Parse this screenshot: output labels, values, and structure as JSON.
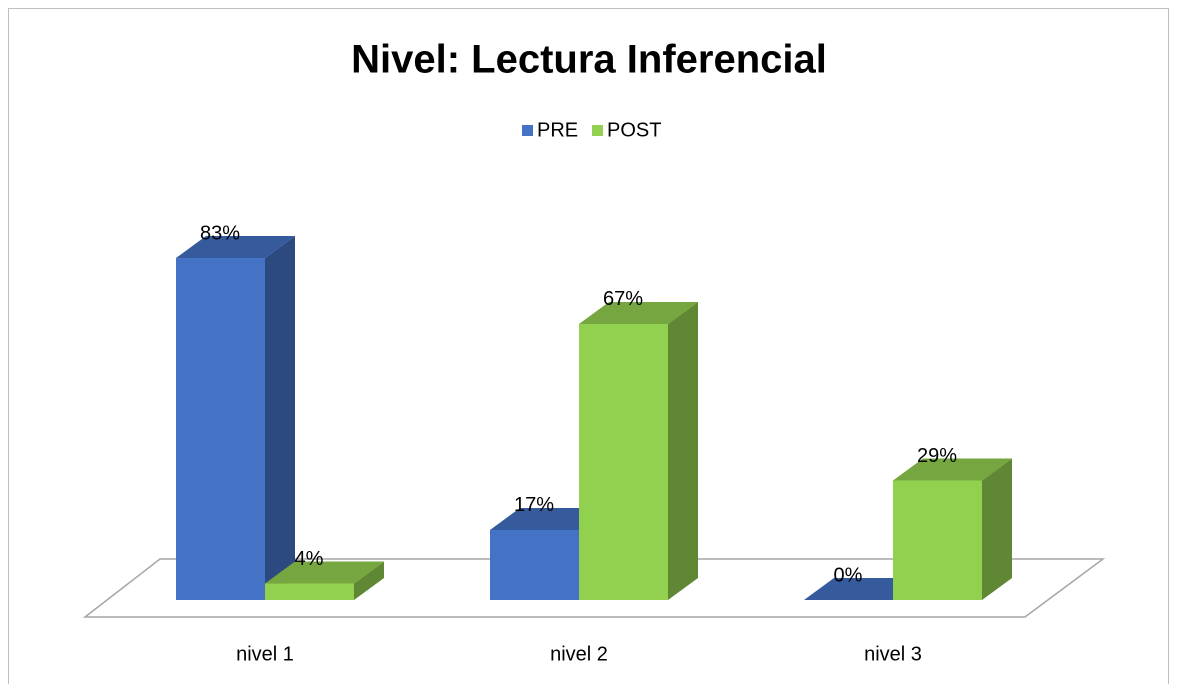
{
  "chart_data": {
    "type": "bar3d",
    "title": "Nivel: Lectura Inferencial",
    "categories": [
      "nivel 1",
      "nivel 2",
      "nivel 3"
    ],
    "series": [
      {
        "name": "PRE",
        "color": "#4472c4",
        "values": [
          83,
          17,
          0
        ],
        "value_labels": [
          "83%",
          "17%",
          "0%"
        ]
      },
      {
        "name": "POST",
        "color": "#92d050",
        "values": [
          4,
          67,
          29
        ],
        "value_labels": [
          "4%",
          "67%",
          "29%"
        ]
      }
    ],
    "legend": "top"
  }
}
